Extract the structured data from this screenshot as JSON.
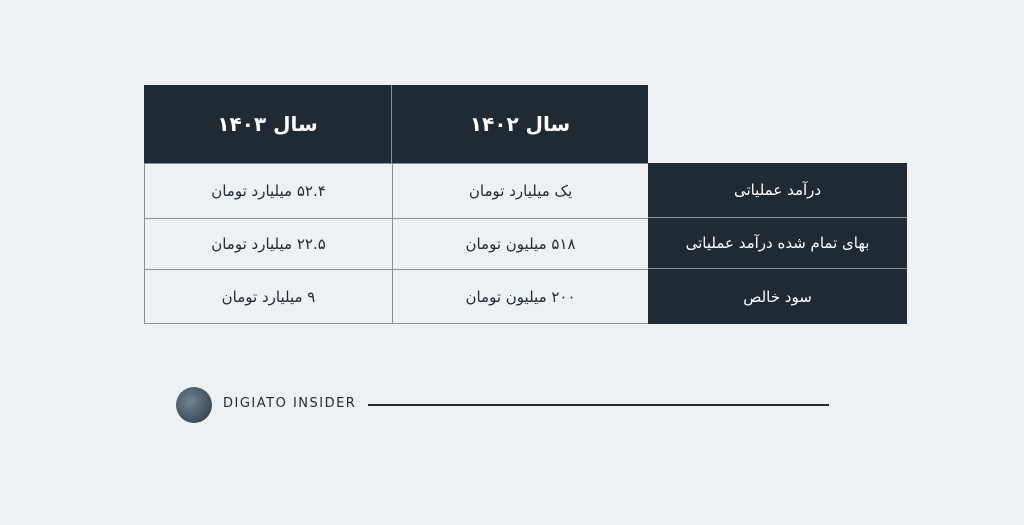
{
  "table": {
    "headers": [
      "سال ۱۴۰۳",
      "سال ۱۴۰۲"
    ],
    "rows": [
      {
        "label": "درآمد عملیاتی",
        "y1402": "یک میلیارد تومان",
        "y1403": "۵۲.۴ میلیارد تومان"
      },
      {
        "label": "بهای تمام شده درآمد عملیاتی",
        "y1402": "۵۱۸ میلیون تومان",
        "y1403": "۲۲.۵ میلیارد تومان"
      },
      {
        "label": "سود خالص",
        "y1402": "۲۰۰ میلیون تومان",
        "y1403": "۹ میلیارد تومان"
      }
    ]
  },
  "footer": {
    "brand": "DIGIATO INSIDER"
  }
}
